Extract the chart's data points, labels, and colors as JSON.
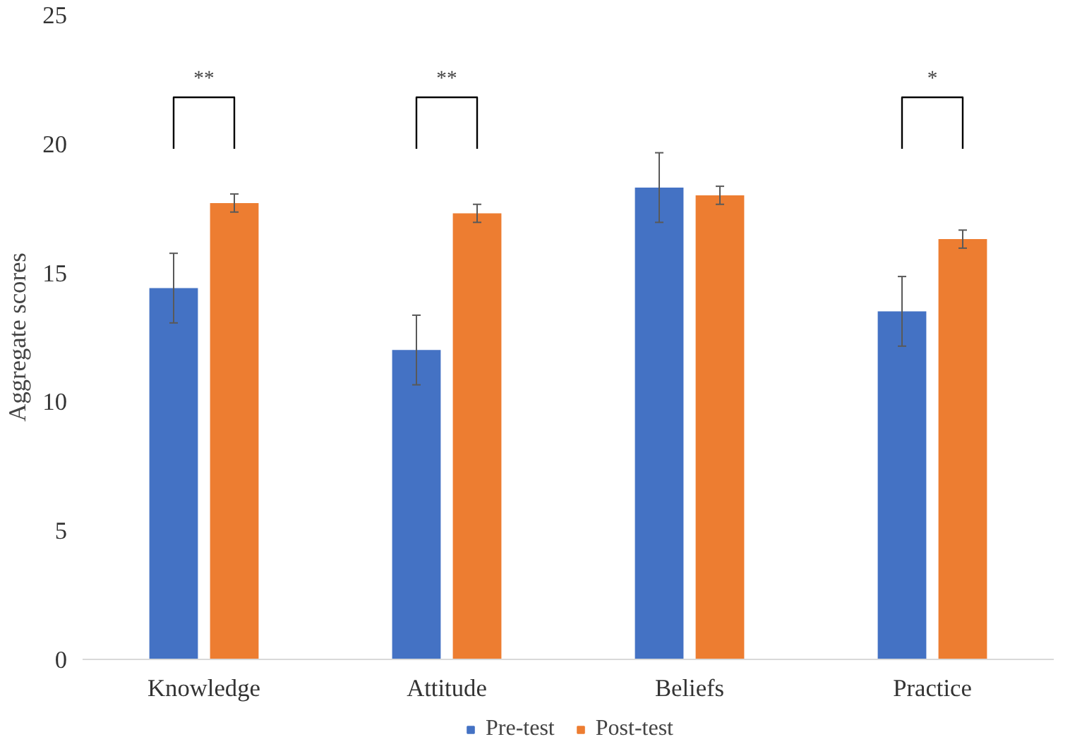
{
  "chart_data": {
    "type": "bar",
    "ylabel": "Aggregate scores",
    "categories": [
      "Knowledge",
      "Attitude",
      "Beliefs",
      "Practice"
    ],
    "series": [
      {
        "name": "Pre-test",
        "color": "#4472c4",
        "values": [
          14.4,
          12.0,
          18.3,
          13.5
        ],
        "errors": [
          1.35,
          1.35,
          1.35,
          1.35
        ]
      },
      {
        "name": "Post-test",
        "color": "#ed7d31",
        "values": [
          17.7,
          17.3,
          18.0,
          16.3
        ],
        "errors": [
          0.35,
          0.35,
          0.35,
          0.35
        ]
      }
    ],
    "ylim": [
      0,
      25
    ],
    "yticks": [
      0,
      5,
      10,
      15,
      20,
      25
    ],
    "grid": false,
    "legend": "bottom",
    "annotations": [
      "**",
      "**",
      "*"
    ]
  }
}
